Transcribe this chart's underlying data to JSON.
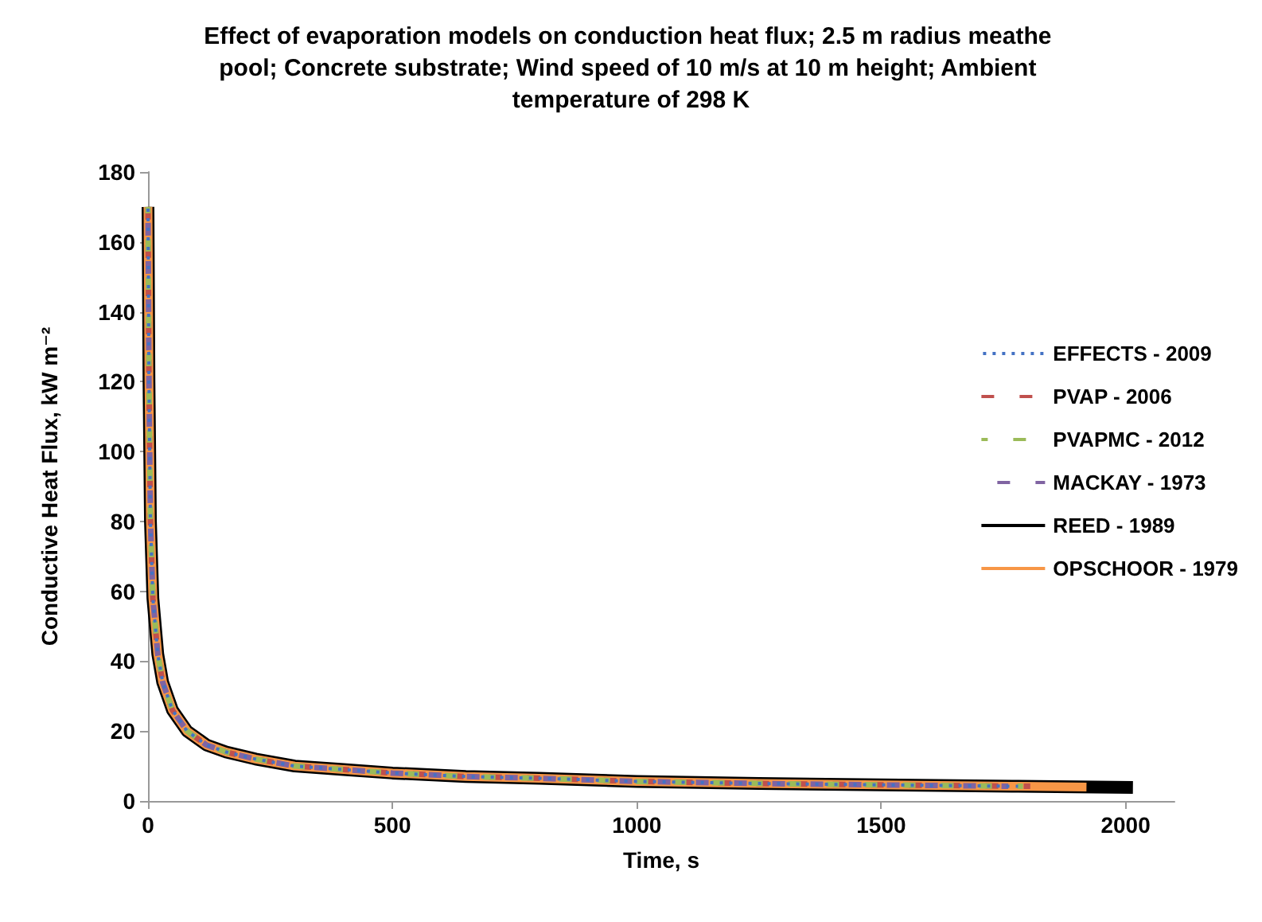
{
  "chart_data": {
    "type": "line",
    "title": "Effect of evaporation models on conduction heat flux; 2.5 m radius meathe pool; Concrete substrate; Wind speed of 10 m/s at 10 m height; Ambient temperature of 298 K",
    "xlabel": "Time, s",
    "ylabel": "Conductive Heat Flux, kW m⁻²",
    "xlim": [
      0,
      2100
    ],
    "xticks": [
      0,
      500,
      1000,
      1500,
      2000
    ],
    "ylim": [
      0,
      180
    ],
    "yticks": [
      0,
      20,
      40,
      60,
      80,
      100,
      120,
      140,
      160,
      180
    ],
    "grid": false,
    "legend": "right",
    "marker": "none",
    "series": [
      {
        "name": "EFFECTS - 2009",
        "color": "#4472c4",
        "line_style": "dotted",
        "x": [
          0,
          2,
          5,
          10,
          20,
          30,
          50,
          80,
          120,
          160,
          220,
          300,
          400,
          500,
          650,
          800,
          1000,
          1250,
          1500,
          1780
        ],
        "values": [
          170,
          120,
          80,
          58,
          42,
          34,
          26,
          20,
          16,
          14,
          12,
          10,
          9,
          8,
          7,
          6.5,
          5.6,
          5,
          4.6,
          4.2
        ]
      },
      {
        "name": "PVAP - 2006",
        "color": "#c0504d",
        "line_style": "dashed",
        "x": [
          0,
          2,
          5,
          10,
          20,
          30,
          50,
          80,
          120,
          160,
          220,
          300,
          400,
          500,
          650,
          800,
          1000,
          1250,
          1500,
          1805
        ],
        "values": [
          170,
          120,
          80,
          58,
          42,
          34,
          26,
          20,
          16,
          14,
          12,
          10,
          9,
          8,
          7,
          6.5,
          5.6,
          5,
          4.6,
          4.2
        ]
      },
      {
        "name": "PVAPMC - 2012",
        "color": "#9bbb59",
        "line_style": "dashed",
        "x": [
          0,
          2,
          5,
          10,
          20,
          30,
          50,
          80,
          120,
          160,
          220,
          300,
          400,
          500,
          650,
          800,
          1000,
          1250,
          1500,
          1790
        ],
        "values": [
          170,
          120,
          80,
          58,
          42,
          34,
          26,
          20,
          16,
          14,
          12,
          10,
          9,
          8,
          7,
          6.5,
          5.6,
          5,
          4.6,
          4.2
        ]
      },
      {
        "name": "MACKAY - 1973",
        "color": "#8064a2",
        "line_style": "dashed",
        "x": [
          0,
          2,
          5,
          10,
          20,
          30,
          50,
          80,
          120,
          160,
          220,
          300,
          400,
          500,
          650,
          800,
          1000,
          1250,
          1500,
          1760
        ],
        "values": [
          170,
          120,
          80,
          58,
          42,
          34,
          26,
          20,
          16,
          14,
          12,
          10,
          9,
          8,
          7,
          6.5,
          5.6,
          5,
          4.6,
          4.2
        ]
      },
      {
        "name": "REED - 1989",
        "color": "#000000",
        "line_style": "solid",
        "x": [
          0,
          2,
          5,
          10,
          20,
          30,
          50,
          80,
          120,
          160,
          220,
          300,
          400,
          500,
          650,
          800,
          1000,
          1250,
          1500,
          1780,
          2015
        ],
        "values": [
          170,
          120,
          80,
          58,
          42,
          34,
          26,
          20,
          16,
          14,
          12,
          10,
          9,
          8,
          7,
          6.5,
          5.6,
          5,
          4.6,
          4.2,
          3.9
        ]
      },
      {
        "name": "OPSCHOOR - 1979",
        "color": "#f79646",
        "line_style": "solid",
        "x": [
          0,
          2,
          5,
          10,
          20,
          30,
          50,
          80,
          120,
          160,
          220,
          300,
          400,
          500,
          650,
          800,
          1000,
          1250,
          1500,
          1780,
          1920
        ],
        "values": [
          170,
          120,
          80,
          58,
          42,
          34,
          26,
          20,
          16,
          14,
          12,
          10,
          9,
          8,
          7,
          6.5,
          5.6,
          5,
          4.6,
          4.2,
          4.0
        ]
      }
    ]
  }
}
